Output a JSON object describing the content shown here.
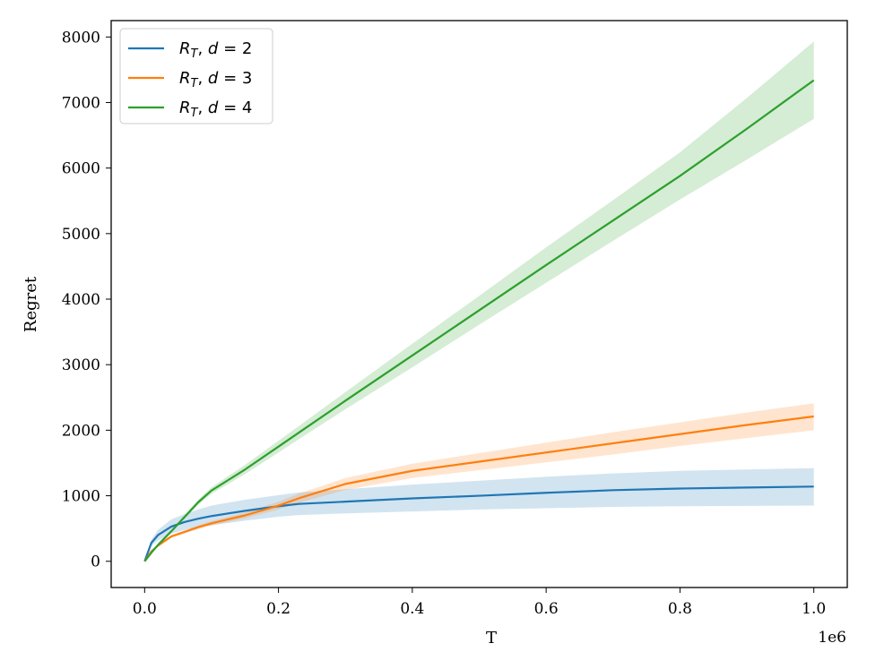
{
  "chart_data": {
    "type": "line",
    "title": "",
    "xlabel": "T",
    "ylabel": "Regret",
    "x_offset_text": "1e6",
    "xlim": [
      -0.05,
      1.05
    ],
    "ylim": [
      -400,
      8250
    ],
    "xticks": [
      0.0,
      0.2,
      0.4,
      0.6,
      0.8,
      1.0
    ],
    "xtick_labels": [
      "0.0",
      "0.2",
      "0.4",
      "0.6",
      "0.8",
      "1.0"
    ],
    "yticks": [
      0,
      1000,
      2000,
      3000,
      4000,
      5000,
      6000,
      7000,
      8000
    ],
    "ytick_labels": [
      "0",
      "1000",
      "2000",
      "3000",
      "4000",
      "5000",
      "6000",
      "7000",
      "8000"
    ],
    "grid": false,
    "legend_position": "top-left",
    "x": [
      0.0,
      0.01,
      0.02,
      0.04,
      0.06,
      0.08,
      0.1,
      0.15,
      0.2,
      0.23,
      0.3,
      0.4,
      0.5,
      0.6,
      0.7,
      0.8,
      0.9,
      1.0
    ],
    "series": [
      {
        "name": "d = 2",
        "legend_parts": [
          "R",
          "T",
          ", ",
          "d",
          " = 2"
        ],
        "color": "#1f77b4",
        "band_opacity": 0.2,
        "values": [
          0,
          280,
          400,
          530,
          600,
          650,
          690,
          770,
          840,
          875,
          910,
          960,
          1000,
          1045,
          1085,
          1110,
          1125,
          1140
        ],
        "lower": [
          0,
          230,
          320,
          420,
          480,
          520,
          550,
          620,
          680,
          705,
          730,
          760,
          790,
          810,
          830,
          840,
          845,
          850
        ],
        "upper": [
          0,
          330,
          480,
          640,
          720,
          790,
          850,
          940,
          1010,
          1050,
          1100,
          1170,
          1230,
          1290,
          1340,
          1380,
          1400,
          1420
        ]
      },
      {
        "name": "d = 3",
        "legend_parts": [
          "R",
          "T",
          ", ",
          "d",
          " = 3"
        ],
        "color": "#ff7f0e",
        "band_opacity": 0.2,
        "values": [
          0,
          150,
          240,
          380,
          450,
          520,
          580,
          700,
          850,
          960,
          1180,
          1380,
          1520,
          1660,
          1800,
          1940,
          2080,
          2210
        ],
        "lower": [
          0,
          140,
          225,
          360,
          425,
          490,
          545,
          655,
          790,
          890,
          1090,
          1270,
          1390,
          1510,
          1630,
          1760,
          1880,
          2000
        ],
        "upper": [
          0,
          160,
          255,
          400,
          475,
          550,
          615,
          745,
          910,
          1030,
          1270,
          1490,
          1650,
          1810,
          1970,
          2120,
          2270,
          2410
        ]
      },
      {
        "name": "d = 4",
        "legend_parts": [
          "R",
          "T",
          ", ",
          "d",
          " = 4"
        ],
        "color": "#2ca02c",
        "band_opacity": 0.2,
        "values": [
          0,
          130,
          250,
          460,
          680,
          900,
          1080,
          1400,
          1750,
          1960,
          2450,
          3140,
          3830,
          4520,
          5200,
          5880,
          6600,
          7340
        ],
        "lower": [
          0,
          125,
          240,
          440,
          650,
          860,
          1030,
          1330,
          1660,
          1860,
          2320,
          2960,
          3610,
          4250,
          4890,
          5520,
          6130,
          6750
        ],
        "upper": [
          0,
          135,
          260,
          480,
          710,
          940,
          1130,
          1470,
          1840,
          2060,
          2580,
          3320,
          4050,
          4790,
          5510,
          6240,
          7070,
          7930
        ]
      }
    ]
  }
}
